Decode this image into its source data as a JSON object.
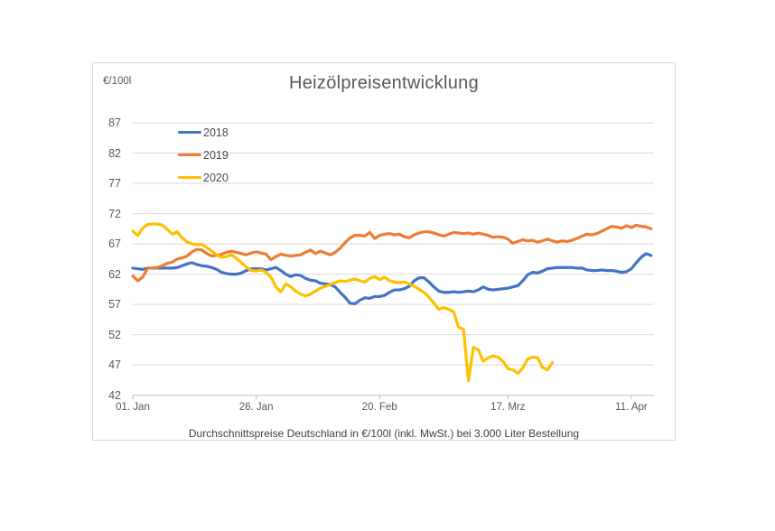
{
  "chart_data": {
    "type": "line",
    "title": "Heizölpreisentwicklung",
    "unit_label": "€/100l",
    "footer": "Durchschnittspreise Deutschland in €/100l (inkl. MwSt.) bei 3.000 Liter Bestellung",
    "xlabel": "",
    "ylabel": "€/100l",
    "ylim": [
      42,
      87
    ],
    "y_ticks": [
      87,
      82,
      77,
      72,
      67,
      62,
      57,
      52,
      47,
      42
    ],
    "x_unit": "days since Jan 1",
    "x_ticks": [
      {
        "day": 0,
        "label": "01. Jan"
      },
      {
        "day": 25,
        "label": "26. Jan"
      },
      {
        "day": 50,
        "label": "20. Feb"
      },
      {
        "day": 76,
        "label": "17. Mrz"
      },
      {
        "day": 101,
        "label": "11. Apr"
      }
    ],
    "grid": true,
    "legend_position": "top-left-inside",
    "colors": {
      "grid": "#d9d9d9",
      "axis": "#bfbfbf",
      "text": "#595959"
    },
    "series": [
      {
        "name": "2018",
        "color": "#4472c4",
        "start_day": 0,
        "values": [
          63.0,
          62.9,
          62.8,
          63.0,
          63.0,
          63.0,
          63.0,
          63.0,
          63.0,
          63.1,
          63.4,
          63.7,
          63.9,
          63.6,
          63.4,
          63.3,
          63.1,
          62.8,
          62.3,
          62.1,
          62.0,
          62.0,
          62.2,
          62.6,
          62.9,
          62.9,
          62.9,
          62.7,
          62.9,
          63.1,
          62.6,
          62.0,
          61.6,
          61.9,
          61.8,
          61.3,
          61.0,
          60.9,
          60.5,
          60.4,
          60.3,
          59.9,
          59.0,
          58.2,
          57.2,
          57.1,
          57.7,
          58.1,
          58.0,
          58.3,
          58.3,
          58.5,
          59.0,
          59.4,
          59.4,
          59.6,
          60.0,
          60.9,
          61.4,
          61.4,
          60.7,
          59.9,
          59.2,
          59.0,
          59.0,
          59.1,
          59.0,
          59.1,
          59.2,
          59.1,
          59.4,
          59.9,
          59.5,
          59.4,
          59.5,
          59.6,
          59.7,
          59.9,
          60.1,
          60.9,
          61.9,
          62.3,
          62.2,
          62.5,
          62.9,
          63.0,
          63.1,
          63.1,
          63.1,
          63.1,
          63.0,
          63.0,
          62.7,
          62.6,
          62.6,
          62.7,
          62.6,
          62.6,
          62.5,
          62.3,
          62.4,
          62.9,
          63.9,
          64.8,
          65.4,
          65.1
        ]
      },
      {
        "name": "2019",
        "color": "#ed7d31",
        "start_day": 0,
        "values": [
          61.7,
          60.9,
          61.5,
          63.0,
          63.0,
          63.1,
          63.4,
          63.8,
          64.0,
          64.5,
          64.7,
          65.0,
          65.7,
          66.1,
          66.0,
          65.4,
          65.0,
          65.1,
          65.3,
          65.6,
          65.8,
          65.6,
          65.4,
          65.2,
          65.5,
          65.7,
          65.5,
          65.3,
          64.4,
          64.9,
          65.3,
          65.1,
          65.0,
          65.1,
          65.2,
          65.6,
          66.0,
          65.4,
          65.8,
          65.5,
          65.2,
          65.6,
          66.3,
          67.2,
          68.0,
          68.4,
          68.4,
          68.3,
          68.9,
          67.9,
          68.4,
          68.6,
          68.7,
          68.5,
          68.6,
          68.2,
          68.0,
          68.5,
          68.8,
          69.0,
          69.0,
          68.8,
          68.5,
          68.3,
          68.6,
          68.9,
          68.8,
          68.7,
          68.8,
          68.6,
          68.8,
          68.6,
          68.4,
          68.1,
          68.2,
          68.1,
          67.8,
          67.1,
          67.4,
          67.7,
          67.5,
          67.6,
          67.3,
          67.5,
          67.8,
          67.5,
          67.3,
          67.5,
          67.4,
          67.6,
          67.9,
          68.3,
          68.6,
          68.5,
          68.7,
          69.1,
          69.5,
          69.9,
          69.8,
          69.6,
          70.0,
          69.7,
          70.1,
          69.9,
          69.8,
          69.5
        ]
      },
      {
        "name": "2020",
        "color": "#ffc000",
        "start_day": 0,
        "values": [
          69.1,
          68.4,
          69.6,
          70.2,
          70.3,
          70.3,
          70.1,
          69.4,
          68.6,
          69.0,
          68.0,
          67.3,
          67.0,
          66.9,
          66.9,
          66.4,
          65.8,
          65.2,
          64.8,
          64.9,
          65.2,
          64.6,
          63.9,
          63.2,
          62.6,
          62.5,
          62.7,
          62.3,
          61.5,
          59.9,
          59.1,
          60.4,
          59.9,
          59.2,
          58.7,
          58.4,
          58.7,
          59.2,
          59.7,
          60.0,
          60.3,
          60.6,
          60.9,
          60.8,
          61.0,
          61.2,
          60.9,
          60.7,
          61.3,
          61.6,
          61.1,
          61.5,
          60.9,
          60.7,
          60.6,
          60.7,
          60.4,
          60.0,
          59.5,
          59.0,
          58.2,
          57.2,
          56.2,
          56.5,
          56.2,
          55.8,
          53.2,
          52.9,
          44.4,
          49.9,
          49.5,
          47.6,
          48.2,
          48.5,
          48.3,
          47.6,
          46.4,
          46.2,
          45.6,
          46.5,
          48.0,
          48.3,
          48.2,
          46.6,
          46.2,
          47.4
        ]
      }
    ]
  }
}
